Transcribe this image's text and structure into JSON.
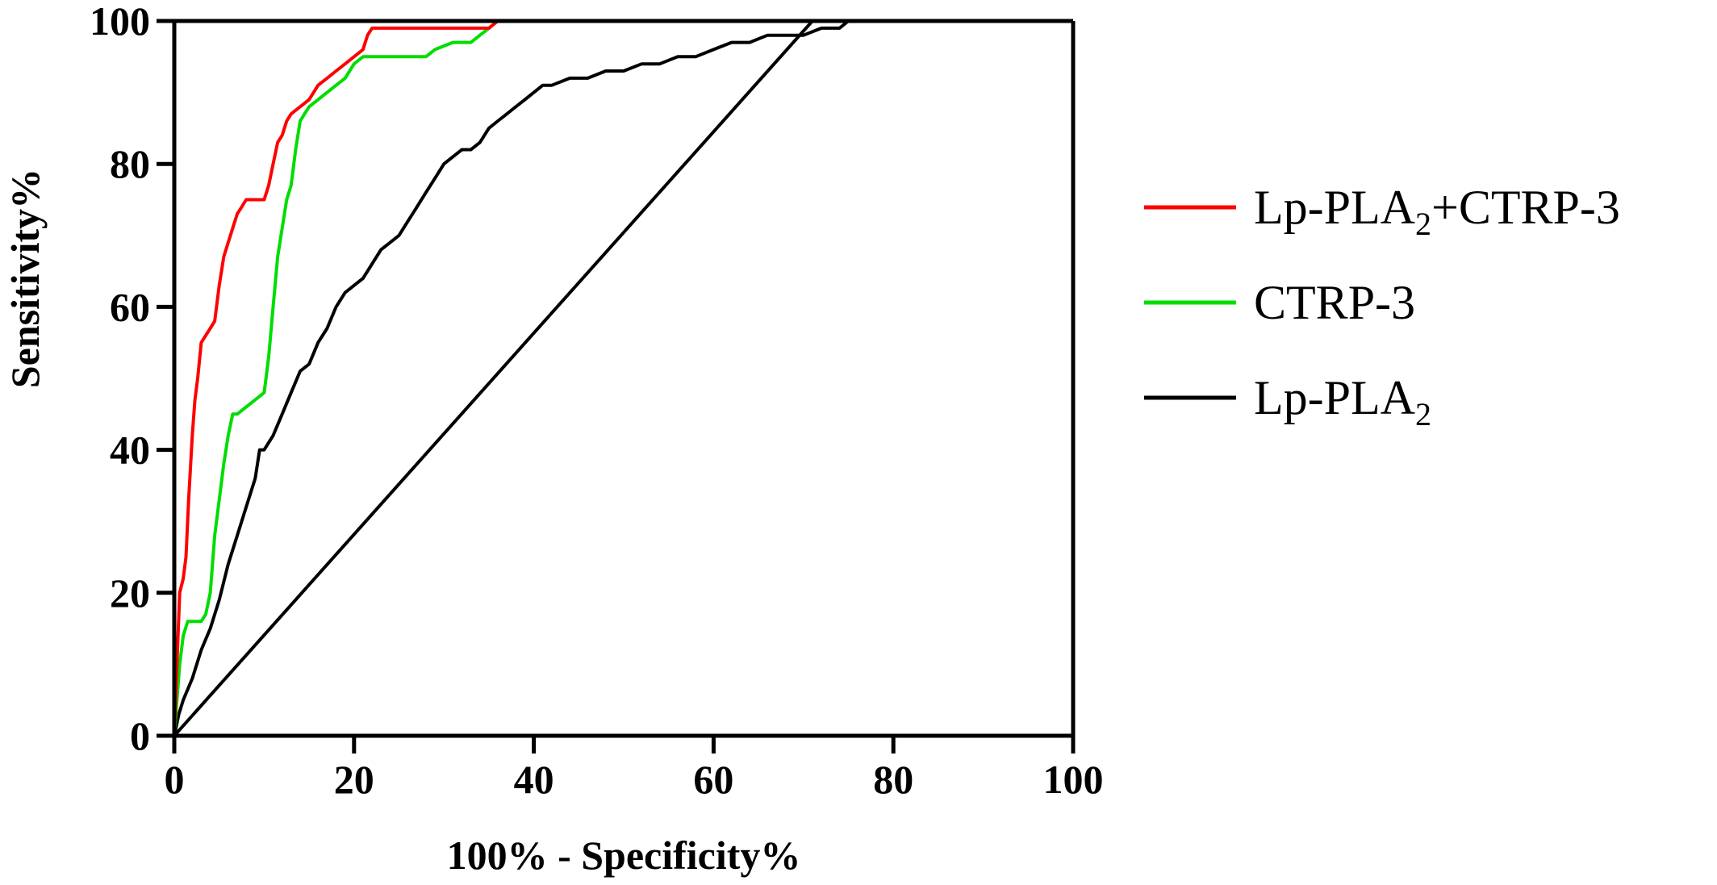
{
  "chart_data": {
    "type": "line",
    "title": "",
    "xlabel": "100% - Specificity%",
    "ylabel": "Sensitivity%",
    "xlim": [
      0,
      100
    ],
    "ylim": [
      0,
      100
    ],
    "x_ticks": [
      0,
      20,
      40,
      60,
      80,
      100
    ],
    "y_ticks": [
      0,
      20,
      40,
      60,
      80,
      100
    ],
    "grid": false,
    "legend_position": "right",
    "series": [
      {
        "name": "Lp-PLA2+CTRP-3",
        "name_main": "Lp-PLA",
        "name_sub": "2",
        "name_suffix": "+CTRP-3",
        "color": "#ff0000",
        "points": [
          [
            0,
            0
          ],
          [
            0.3,
            10
          ],
          [
            0.6,
            20
          ],
          [
            1,
            22
          ],
          [
            1.3,
            25
          ],
          [
            1.6,
            33
          ],
          [
            2,
            42
          ],
          [
            2.3,
            47
          ],
          [
            2.6,
            50
          ],
          [
            3,
            55
          ],
          [
            3.5,
            56
          ],
          [
            4,
            57
          ],
          [
            4.5,
            58
          ],
          [
            5,
            63
          ],
          [
            5.5,
            67
          ],
          [
            6,
            69
          ],
          [
            6.5,
            71
          ],
          [
            7,
            73
          ],
          [
            7.5,
            74
          ],
          [
            8,
            75
          ],
          [
            9,
            75
          ],
          [
            10,
            75
          ],
          [
            10.5,
            77
          ],
          [
            11,
            80
          ],
          [
            11.5,
            83
          ],
          [
            12,
            84
          ],
          [
            12.5,
            86
          ],
          [
            13,
            87
          ],
          [
            14,
            88
          ],
          [
            15,
            89
          ],
          [
            16,
            91
          ],
          [
            17,
            92
          ],
          [
            18,
            93
          ],
          [
            19,
            94
          ],
          [
            20,
            95
          ],
          [
            21,
            96
          ],
          [
            21.5,
            98
          ],
          [
            22,
            99
          ],
          [
            24,
            99
          ],
          [
            30,
            99
          ],
          [
            35,
            99
          ],
          [
            36,
            100
          ],
          [
            40,
            100
          ],
          [
            100,
            100
          ]
        ]
      },
      {
        "name": "CTRP-3",
        "name_main": "CTRP-3",
        "name_sub": "",
        "name_suffix": "",
        "color": "#00dd00",
        "points": [
          [
            0,
            0
          ],
          [
            0.3,
            5
          ],
          [
            0.6,
            10
          ],
          [
            1,
            14
          ],
          [
            1.5,
            16
          ],
          [
            2,
            16
          ],
          [
            3,
            16
          ],
          [
            3.5,
            17
          ],
          [
            4,
            20
          ],
          [
            4.5,
            28
          ],
          [
            5,
            33
          ],
          [
            5.5,
            38
          ],
          [
            6,
            42
          ],
          [
            6.5,
            45
          ],
          [
            7,
            45
          ],
          [
            8,
            46
          ],
          [
            9,
            47
          ],
          [
            10,
            48
          ],
          [
            10.5,
            53
          ],
          [
            11,
            60
          ],
          [
            11.5,
            67
          ],
          [
            12,
            71
          ],
          [
            12.5,
            75
          ],
          [
            13,
            77
          ],
          [
            13.5,
            82
          ],
          [
            14,
            86
          ],
          [
            14.5,
            87
          ],
          [
            15,
            88
          ],
          [
            16,
            89
          ],
          [
            17,
            90
          ],
          [
            18,
            91
          ],
          [
            19,
            92
          ],
          [
            20,
            94
          ],
          [
            21,
            95
          ],
          [
            24,
            95
          ],
          [
            28,
            95
          ],
          [
            29,
            96
          ],
          [
            31,
            97
          ],
          [
            33,
            97
          ],
          [
            34,
            98
          ],
          [
            35,
            99
          ],
          [
            36,
            100
          ],
          [
            100,
            100
          ]
        ]
      },
      {
        "name": "Lp-PLA2",
        "name_main": "Lp-PLA",
        "name_sub": "2",
        "name_suffix": "",
        "color": "#000000",
        "points": [
          [
            0,
            0
          ],
          [
            0.5,
            3
          ],
          [
            1,
            5
          ],
          [
            2,
            8
          ],
          [
            3,
            12
          ],
          [
            4,
            15
          ],
          [
            5,
            19
          ],
          [
            6,
            24
          ],
          [
            7,
            28
          ],
          [
            8,
            32
          ],
          [
            9,
            36
          ],
          [
            9.5,
            40
          ],
          [
            10,
            40
          ],
          [
            11,
            42
          ],
          [
            12,
            45
          ],
          [
            13,
            48
          ],
          [
            14,
            51
          ],
          [
            15,
            52
          ],
          [
            16,
            55
          ],
          [
            17,
            57
          ],
          [
            18,
            60
          ],
          [
            19,
            62
          ],
          [
            20,
            63
          ],
          [
            21,
            64
          ],
          [
            22,
            66
          ],
          [
            23,
            68
          ],
          [
            24,
            69
          ],
          [
            25,
            70
          ],
          [
            26,
            72
          ],
          [
            27,
            74
          ],
          [
            28,
            76
          ],
          [
            29,
            78
          ],
          [
            30,
            80
          ],
          [
            31,
            81
          ],
          [
            32,
            82
          ],
          [
            33,
            82
          ],
          [
            34,
            83
          ],
          [
            35,
            85
          ],
          [
            36,
            86
          ],
          [
            37,
            87
          ],
          [
            38,
            88
          ],
          [
            39,
            89
          ],
          [
            40,
            90
          ],
          [
            41,
            91
          ],
          [
            42,
            91
          ],
          [
            44,
            92
          ],
          [
            46,
            92
          ],
          [
            48,
            93
          ],
          [
            50,
            93
          ],
          [
            52,
            94
          ],
          [
            54,
            94
          ],
          [
            56,
            95
          ],
          [
            58,
            95
          ],
          [
            60,
            96
          ],
          [
            62,
            97
          ],
          [
            64,
            97
          ],
          [
            66,
            98
          ],
          [
            68,
            98
          ],
          [
            70,
            98
          ],
          [
            72,
            99
          ],
          [
            74,
            99
          ],
          [
            75,
            100
          ],
          [
            100,
            100
          ]
        ]
      },
      {
        "name": "",
        "role": "reference",
        "color": "#000000",
        "points": [
          [
            0,
            0
          ],
          [
            71,
            100
          ]
        ]
      }
    ]
  }
}
